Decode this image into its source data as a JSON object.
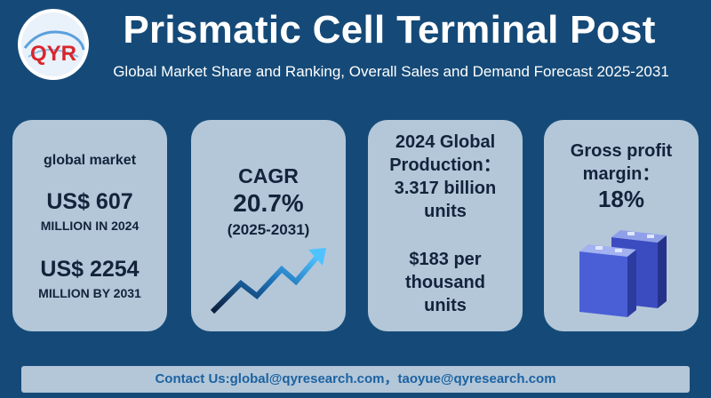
{
  "brand": {
    "logo_text": "QYR"
  },
  "header": {
    "title": "Prismatic Cell Terminal Post",
    "subtitle": "Global Market Share and Ranking, Overall Sales and Demand Forecast 2025-2031"
  },
  "cards": {
    "market": {
      "label": "global market",
      "value_2024": "US$ 607",
      "value_2024_suffix": "MILLION IN 2024",
      "value_2031": "US$ 2254",
      "value_2031_suffix": "MILLION BY 2031"
    },
    "cagr": {
      "label": "CAGR",
      "value": "20.7%",
      "range": "(2025-2031)",
      "icon": "trend-up-arrow-icon"
    },
    "production": {
      "line1": "2024 Global",
      "line2": "Production：",
      "line3": "3.317 billion",
      "line4": "units",
      "price1": "$183 per",
      "price2": "thousand",
      "price3": "units"
    },
    "margin": {
      "line1": "Gross profit",
      "line2": "margin：",
      "value": "18%",
      "icon": "battery-cells-icon"
    }
  },
  "footer": {
    "contact": "Contact Us:global@qyresearch.com，taoyue@qyresearch.com"
  },
  "colors": {
    "background": "#154a78",
    "card": "#b3c7d9",
    "footer_text": "#1c62a0",
    "logo_red": "#d9262c"
  }
}
